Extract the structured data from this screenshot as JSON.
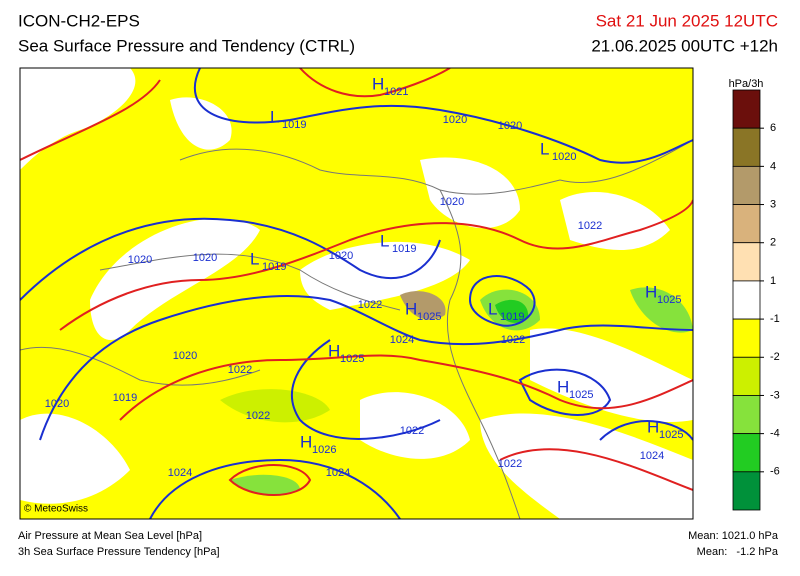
{
  "header": {
    "model": "ICON-CH2-EPS",
    "product": "Sea Surface Pressure and Tendency (CTRL)",
    "valid_time": "Sat 21 Jun 2025 12UTC",
    "run": "21.06.2025 00UTC +12h"
  },
  "colorbar": {
    "unit": "hPa/3h",
    "colors": [
      "#6b0f0c",
      "#8a7526",
      "#b39a6a",
      "#d9b27c",
      "#ffe0b2",
      "#ffffff",
      "#ffff00",
      "#ccf000",
      "#86e23c",
      "#22cc22",
      "#00913a"
    ],
    "labels": [
      "6",
      "4",
      "3",
      "2",
      "1",
      "-1",
      "-2",
      "-3",
      "-4",
      "-6"
    ]
  },
  "pressure_labels": [
    {
      "symbol": "H",
      "value": "1021"
    },
    {
      "symbol": "L",
      "value": "1019"
    },
    {
      "value": "1020"
    },
    {
      "value": "1020"
    },
    {
      "symbol": "L",
      "value": "1020"
    },
    {
      "value": "1020"
    },
    {
      "symbol": "L",
      "value": "1019"
    },
    {
      "value": "1022"
    },
    {
      "value": "1020"
    },
    {
      "value": "1020"
    },
    {
      "symbol": "L",
      "value": "1019"
    },
    {
      "value": "1020"
    },
    {
      "symbol": "H",
      "value": "1025"
    },
    {
      "value": "1022"
    },
    {
      "symbol": "H",
      "value": "1025"
    },
    {
      "symbol": "L",
      "value": "1019"
    },
    {
      "value": "1022"
    },
    {
      "value": "1024"
    },
    {
      "symbol": "H",
      "value": "1025"
    },
    {
      "value": "1020"
    },
    {
      "value": "1022"
    },
    {
      "symbol": "H",
      "value": "1025"
    },
    {
      "value": "1019"
    },
    {
      "value": "1020"
    },
    {
      "value": "1022"
    },
    {
      "value": "1022"
    },
    {
      "symbol": "H",
      "value": "1025"
    },
    {
      "symbol": "H",
      "value": "1026"
    },
    {
      "value": "1024"
    },
    {
      "value": "1022"
    },
    {
      "value": "1024"
    },
    {
      "value": "1024"
    }
  ],
  "credit": "© MeteoSwiss",
  "footer": {
    "left": [
      "Air Pressure at Mean Sea Level [hPa]",
      "3h Sea Surface Pressure Tendency [hPa]"
    ],
    "right": [
      "Mean: 1021.0 hPa",
      "Mean:   -1.2 hPa"
    ]
  }
}
